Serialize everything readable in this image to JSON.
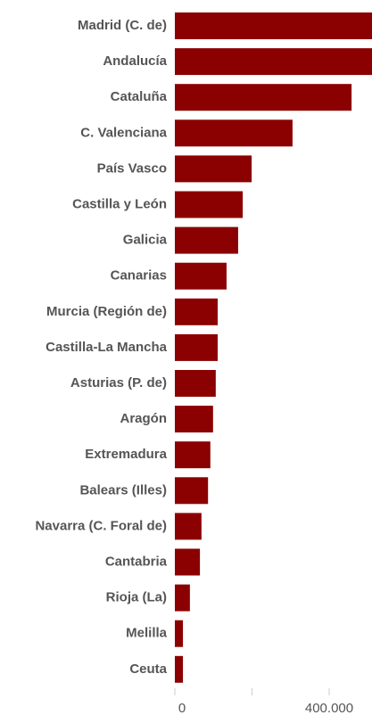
{
  "chart_data": {
    "type": "barh",
    "categories": [
      "Madrid (C. de)",
      "Andalucía",
      "Cataluña",
      "C. Valenciana",
      "País Vasco",
      "Castilla y León",
      "Galicia",
      "Canarias",
      "Murcia (Región de)",
      "Castilla-La Mancha",
      "Asturias (P. de)",
      "Aragón",
      "Extremadura",
      "Balears (Illes)",
      "Navarra (C. Foral de)",
      "Cantabria",
      "Rioja (La)",
      "Melilla",
      "Ceuta"
    ],
    "values": [
      511000,
      511000,
      458000,
      305000,
      199000,
      176000,
      164000,
      134000,
      111000,
      111000,
      106000,
      99000,
      92000,
      86000,
      69000,
      65000,
      39000,
      21000,
      21000
    ],
    "color": "#8b0000",
    "xlim": [
      0,
      511000
    ],
    "xticks": [
      0,
      {
        "value": 400000,
        "label": "400.000"
      }
    ],
    "xminor_ticks": [
      200000
    ]
  }
}
